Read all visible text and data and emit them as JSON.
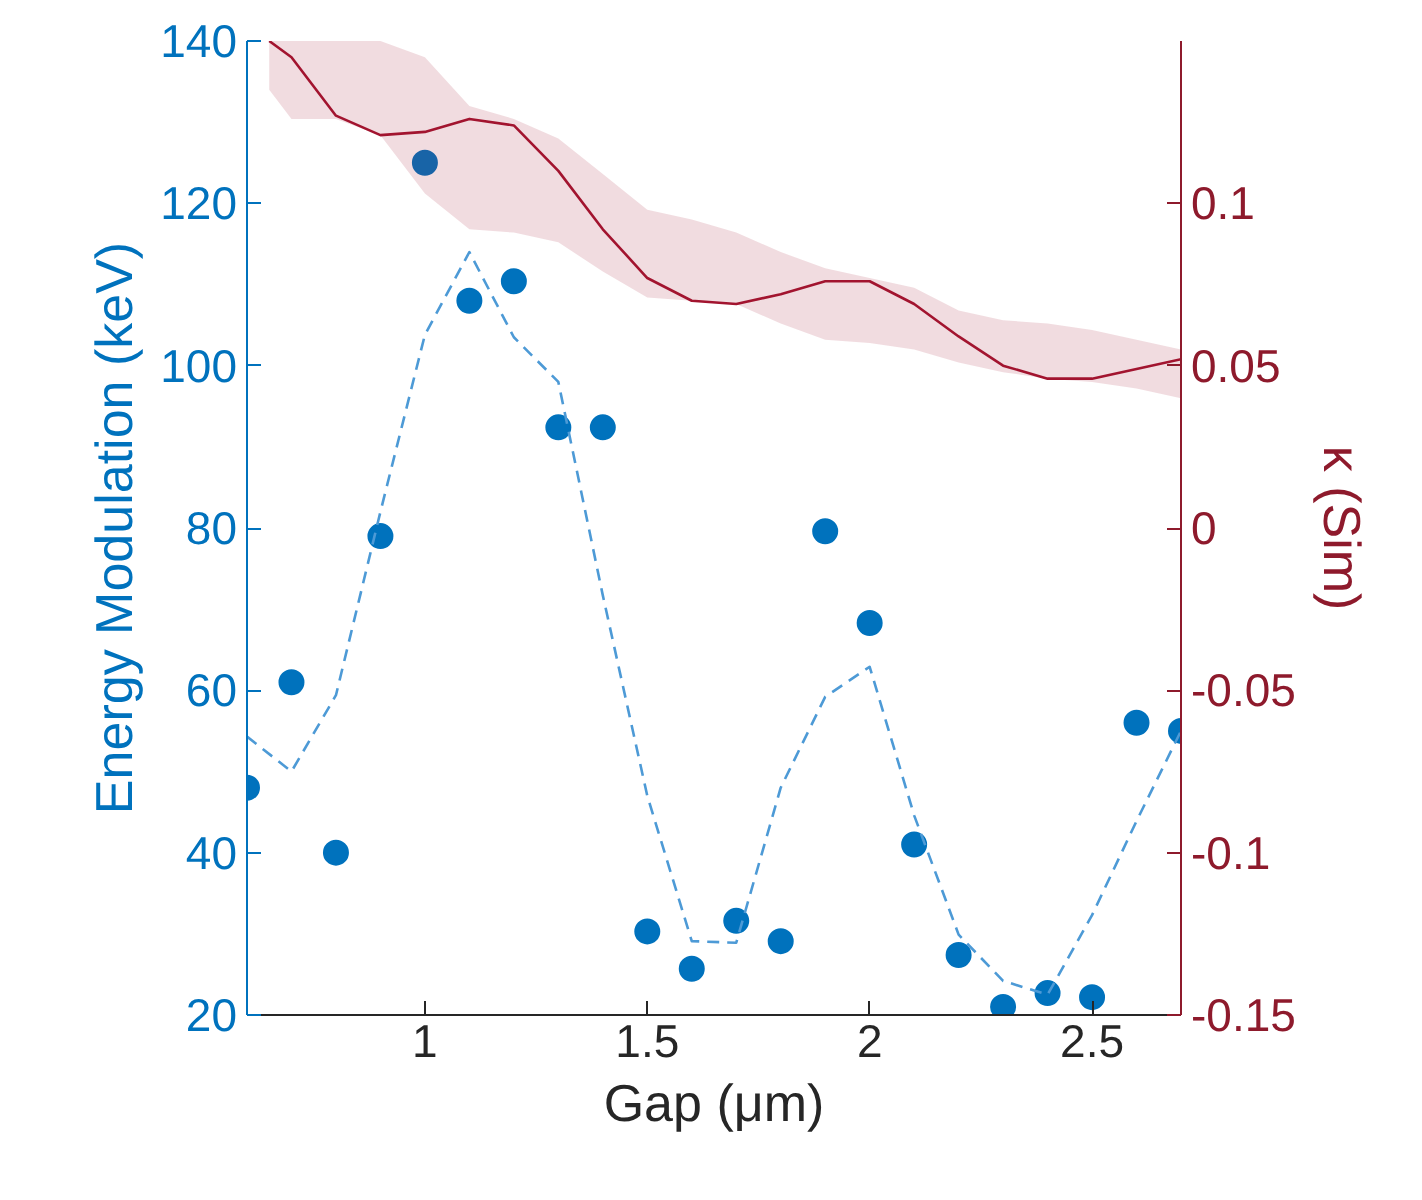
{
  "chart_data": {
    "type": "scatter",
    "xlabel": "Gap (μm)",
    "ylabel": "Energy Modulation (keV)",
    "y2label": "κ (Sim)",
    "x": [
      0.6,
      0.7,
      0.8,
      0.9,
      1.0,
      1.1,
      1.2,
      1.3,
      1.4,
      1.5,
      1.6,
      1.7,
      1.8,
      1.9,
      2.0,
      2.1,
      2.2,
      2.3,
      2.4,
      2.5,
      2.6,
      2.7
    ],
    "xlim": [
      0.6,
      2.7
    ],
    "xticks": [
      1,
      1.5,
      2,
      2.5
    ],
    "ylim": [
      20,
      140
    ],
    "yticks": [
      20,
      40,
      60,
      80,
      100,
      120,
      140
    ],
    "y2lim": [
      -0.15,
      0.15
    ],
    "y2ticks": [
      -0.15,
      -0.1,
      -0.05,
      0,
      0.05,
      0.1
    ],
    "grid": false,
    "marker": "circle",
    "series": [
      {
        "color": "#0072bd",
        "values": [
          48,
          61,
          40,
          79,
          125,
          108,
          110.4,
          92.4,
          92.4,
          30.3,
          25.7,
          31.6,
          29.1,
          79.6,
          68.3,
          41,
          27.4,
          21,
          22.7,
          22.2,
          56,
          55
        ]
      },
      {
        "type": "line",
        "line_style": "dashed",
        "marker": "none",
        "color": "#4d9ad6",
        "values": [
          54.3,
          50,
          59.4,
          82,
          103.8,
          114,
          103.5,
          98,
          71.7,
          47,
          29.1,
          28.9,
          48,
          59.2,
          62.9,
          44.6,
          29.9,
          24.2,
          22.5,
          32.3,
          43.9,
          55
        ]
      },
      {
        "type": "line",
        "axis": "y2",
        "line_style": "solid",
        "marker": "none",
        "color": "#a2142f",
        "x": [
          0.65,
          0.7,
          0.8,
          0.9,
          1.0,
          1.1,
          1.2,
          1.3,
          1.4,
          1.5,
          1.6,
          1.7,
          1.8,
          1.9,
          2.0,
          2.1,
          2.2,
          2.3,
          2.4,
          2.5,
          2.6,
          2.7
        ],
        "values": [
          0.15,
          0.145,
          0.127,
          0.121,
          0.122,
          0.126,
          0.124,
          0.11,
          0.092,
          0.077,
          0.07,
          0.069,
          0.072,
          0.076,
          0.076,
          0.069,
          0.059,
          0.05,
          0.046,
          0.046,
          0.049,
          0.052
        ],
        "lower": [
          0.135,
          0.126,
          0.126,
          0.121,
          0.103,
          0.092,
          0.091,
          0.088,
          0.079,
          0.071,
          0.07,
          0.069,
          0.063,
          0.058,
          0.057,
          0.055,
          0.051,
          0.048,
          0.046,
          0.045,
          0.043,
          0.04
        ],
        "upper": [
          0.15,
          0.15,
          0.15,
          0.15,
          0.145,
          0.13,
          0.126,
          0.12,
          0.109,
          0.098,
          0.095,
          0.091,
          0.085,
          0.08,
          0.077,
          0.074,
          0.067,
          0.064,
          0.063,
          0.061,
          0.058,
          0.055
        ]
      }
    ]
  }
}
